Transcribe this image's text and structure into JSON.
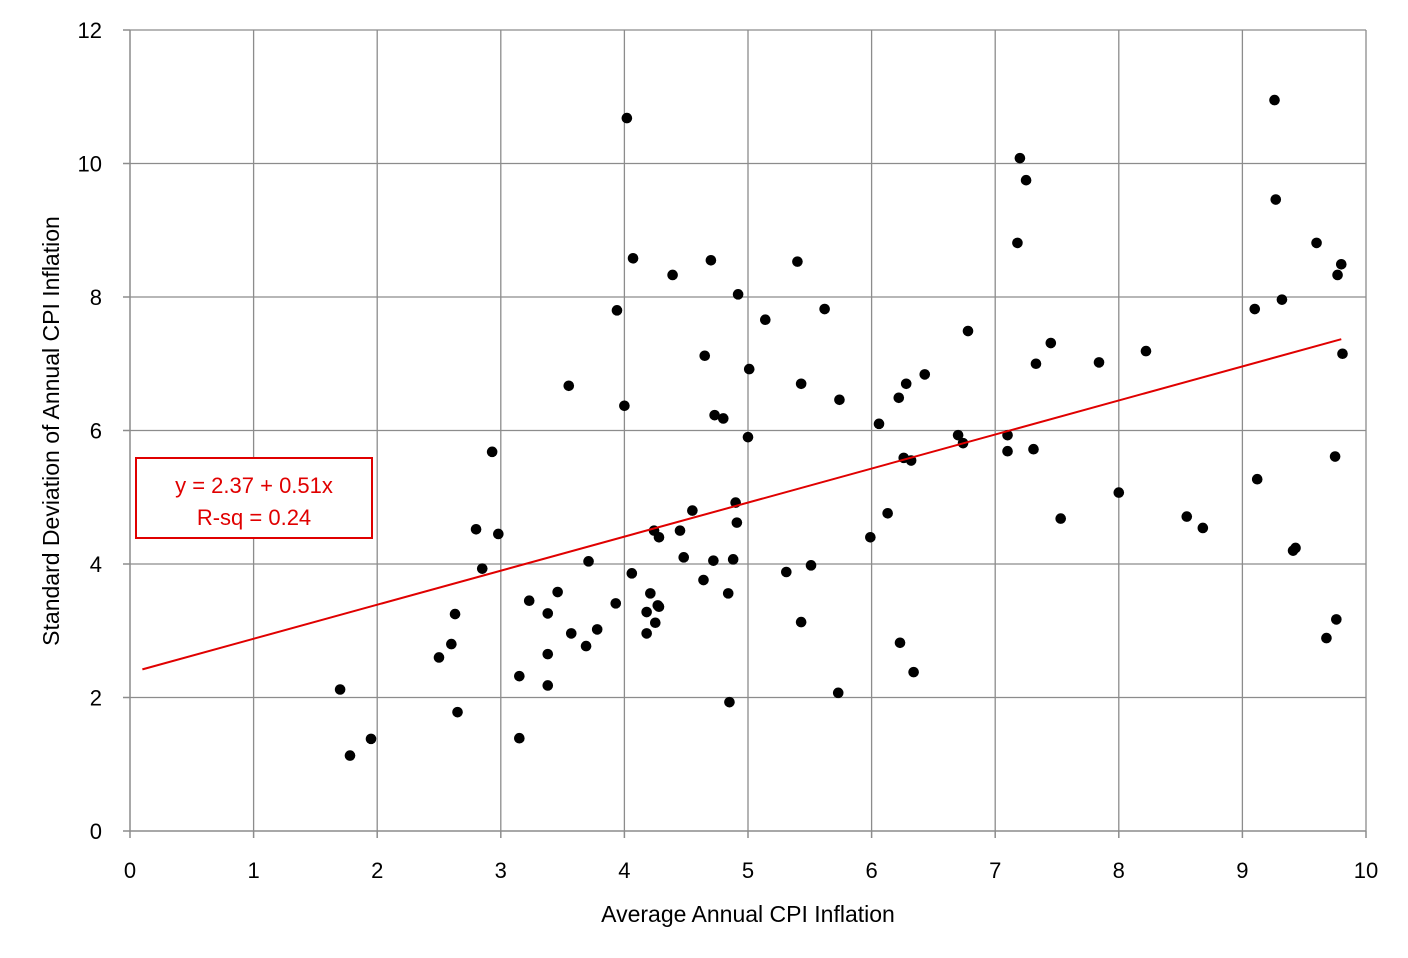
{
  "chart_data": {
    "type": "scatter",
    "xlabel": "Average Annual CPI Inflation",
    "ylabel": "Standard Deviation of Annual CPI Inflation",
    "xlim": [
      0,
      10
    ],
    "ylim": [
      0,
      12
    ],
    "xticks": [
      "0",
      "1",
      "2",
      "3",
      "4",
      "5",
      "6",
      "7",
      "8",
      "9",
      "10"
    ],
    "yticks": [
      "0",
      "2",
      "4",
      "6",
      "8",
      "10",
      "12"
    ],
    "grid": true,
    "legend": "none",
    "marker_color": "#000000",
    "trendline": {
      "intercept": 2.37,
      "slope": 0.51,
      "x_range": [
        0.1,
        9.8
      ],
      "color": "#e00000"
    },
    "annotation": {
      "line1": "y = 2.37 + 0.51x",
      "line2": "R-sq = 0.24",
      "color": "#e00000",
      "placement": "left"
    },
    "points": [
      [
        1.7,
        2.12
      ],
      [
        1.78,
        1.13
      ],
      [
        1.95,
        1.38
      ],
      [
        2.5,
        2.6
      ],
      [
        2.6,
        2.8
      ],
      [
        2.63,
        3.25
      ],
      [
        2.65,
        1.78
      ],
      [
        2.8,
        4.52
      ],
      [
        2.85,
        3.93
      ],
      [
        2.93,
        5.68
      ],
      [
        2.98,
        4.45
      ],
      [
        3.15,
        2.32
      ],
      [
        3.15,
        1.39
      ],
      [
        3.23,
        3.45
      ],
      [
        3.38,
        3.26
      ],
      [
        3.38,
        2.65
      ],
      [
        3.38,
        2.18
      ],
      [
        3.46,
        3.58
      ],
      [
        3.55,
        6.67
      ],
      [
        3.57,
        2.96
      ],
      [
        3.69,
        2.77
      ],
      [
        3.71,
        4.04
      ],
      [
        3.78,
        3.02
      ],
      [
        3.93,
        3.41
      ],
      [
        3.94,
        7.8
      ],
      [
        4.0,
        6.37
      ],
      [
        4.02,
        10.68
      ],
      [
        4.06,
        3.86
      ],
      [
        4.07,
        8.58
      ],
      [
        4.18,
        3.28
      ],
      [
        4.18,
        2.96
      ],
      [
        4.21,
        3.56
      ],
      [
        4.24,
        4.5
      ],
      [
        4.25,
        3.12
      ],
      [
        4.27,
        3.38
      ],
      [
        4.28,
        3.36
      ],
      [
        4.28,
        4.4
      ],
      [
        4.39,
        8.33
      ],
      [
        4.45,
        4.5
      ],
      [
        4.48,
        4.1
      ],
      [
        4.55,
        4.8
      ],
      [
        4.64,
        3.76
      ],
      [
        4.65,
        7.12
      ],
      [
        4.7,
        8.55
      ],
      [
        4.72,
        4.05
      ],
      [
        4.73,
        6.23
      ],
      [
        4.8,
        6.18
      ],
      [
        4.84,
        3.56
      ],
      [
        4.85,
        1.93
      ],
      [
        4.88,
        4.07
      ],
      [
        4.9,
        4.92
      ],
      [
        4.91,
        4.62
      ],
      [
        4.92,
        8.04
      ],
      [
        5.0,
        5.9
      ],
      [
        5.01,
        6.92
      ],
      [
        5.14,
        7.66
      ],
      [
        5.31,
        3.88
      ],
      [
        5.4,
        8.53
      ],
      [
        5.43,
        6.7
      ],
      [
        5.43,
        3.13
      ],
      [
        5.51,
        3.98
      ],
      [
        5.62,
        7.82
      ],
      [
        5.73,
        2.07
      ],
      [
        5.74,
        6.46
      ],
      [
        5.99,
        4.4
      ],
      [
        6.06,
        6.1
      ],
      [
        6.13,
        4.76
      ],
      [
        6.22,
        6.49
      ],
      [
        6.23,
        2.82
      ],
      [
        6.26,
        5.59
      ],
      [
        6.28,
        6.7
      ],
      [
        6.32,
        5.55
      ],
      [
        6.34,
        2.38
      ],
      [
        6.43,
        6.84
      ],
      [
        6.7,
        5.93
      ],
      [
        6.74,
        5.81
      ],
      [
        6.78,
        7.49
      ],
      [
        7.1,
        5.93
      ],
      [
        7.1,
        5.69
      ],
      [
        7.18,
        8.81
      ],
      [
        7.2,
        10.08
      ],
      [
        7.25,
        9.75
      ],
      [
        7.31,
        5.72
      ],
      [
        7.33,
        7.0
      ],
      [
        7.45,
        7.31
      ],
      [
        7.53,
        4.68
      ],
      [
        7.84,
        7.02
      ],
      [
        8.0,
        5.07
      ],
      [
        8.22,
        7.19
      ],
      [
        8.55,
        4.71
      ],
      [
        8.68,
        4.54
      ],
      [
        9.1,
        7.82
      ],
      [
        9.12,
        5.27
      ],
      [
        9.26,
        10.95
      ],
      [
        9.27,
        9.46
      ],
      [
        9.32,
        7.96
      ],
      [
        9.41,
        4.2
      ],
      [
        9.43,
        4.24
      ],
      [
        9.6,
        8.81
      ],
      [
        9.68,
        2.89
      ],
      [
        9.75,
        5.61
      ],
      [
        9.76,
        3.17
      ],
      [
        9.77,
        8.33
      ],
      [
        9.8,
        8.49
      ],
      [
        9.81,
        7.15
      ]
    ]
  }
}
